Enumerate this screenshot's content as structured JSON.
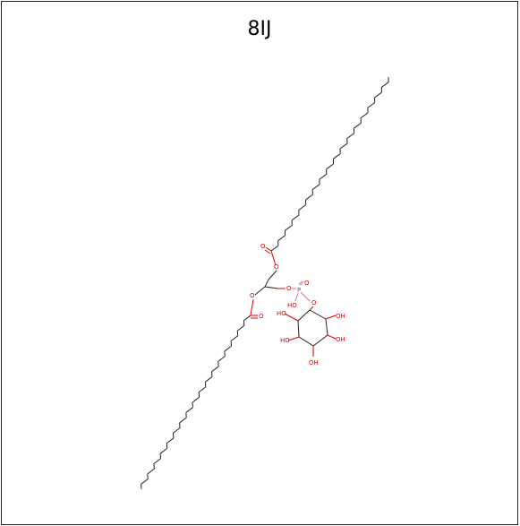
{
  "title": "8IJ",
  "atom_labels": {
    "o_ester1_carbonyl": "O",
    "o_ester1_link": "O",
    "o_ester2_link": "O",
    "o_ester2_carbonyl": "O",
    "o_glycerol_p": "O",
    "p_atom": "P",
    "o_p_double": "O",
    "p_ho": "HO",
    "o_p_inositol": "O",
    "oh_1": "HO",
    "oh_2": "OH",
    "oh_3": "HO",
    "oh_4": "OH",
    "oh_5": "OH"
  },
  "colors": {
    "carbon": "#222222",
    "oxygen": "#e00000",
    "phosphorus": "#c0309a"
  }
}
